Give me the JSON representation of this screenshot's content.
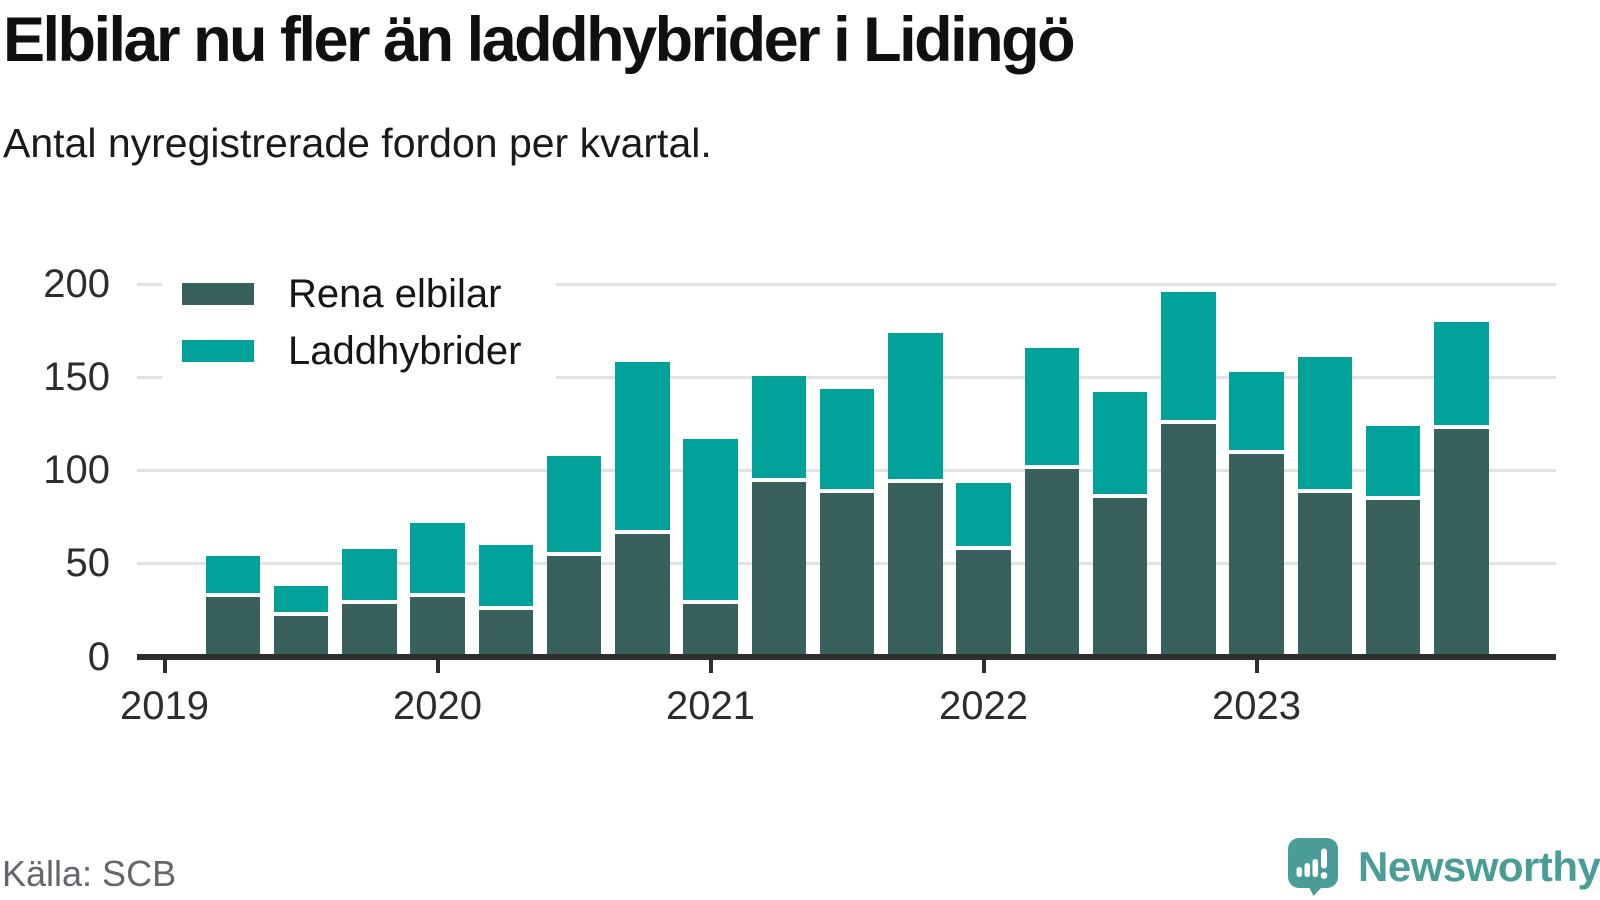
{
  "header": {
    "title": "Elbilar nu fler än laddhybrider i Lidingö",
    "subtitle": "Antal nyregistrerade fordon per kvartal."
  },
  "chart_data": {
    "type": "bar",
    "stacked": true,
    "title": "Elbilar nu fler än laddhybrider i Lidingö",
    "subtitle": "Antal nyregistrerade fordon per kvartal.",
    "categories": [
      "2019 Q2",
      "2019 Q3",
      "2019 Q4",
      "2020 Q1",
      "2020 Q2",
      "2020 Q3",
      "2020 Q4",
      "2021 Q1",
      "2021 Q2",
      "2021 Q3",
      "2021 Q4",
      "2022 Q1",
      "2022 Q2",
      "2022 Q3",
      "2022 Q4",
      "2023 Q1",
      "2023 Q2",
      "2023 Q3",
      "2023 Q4"
    ],
    "series": [
      {
        "name": "Rena elbilar",
        "color": "#38615d",
        "values": [
          32,
          22,
          28,
          32,
          25,
          54,
          66,
          28,
          94,
          88,
          93,
          57,
          101,
          85,
          125,
          109,
          88,
          84,
          122
        ]
      },
      {
        "name": "Laddhybrider",
        "color": "#00a29a",
        "values": [
          22,
          16,
          30,
          40,
          35,
          54,
          92,
          89,
          57,
          56,
          81,
          36,
          65,
          57,
          71,
          44,
          73,
          40,
          58
        ]
      }
    ],
    "x_tick_labels": [
      "2019",
      "2020",
      "2021",
      "2022",
      "2023"
    ],
    "y_ticks": [
      0,
      50,
      100,
      150,
      200
    ],
    "ylim": [
      0,
      200
    ],
    "grid": true,
    "legend_position": "top-left"
  },
  "footer": {
    "source": "Källa: SCB",
    "brand": "Newsworthy",
    "brand_color": "#4a9d97"
  }
}
